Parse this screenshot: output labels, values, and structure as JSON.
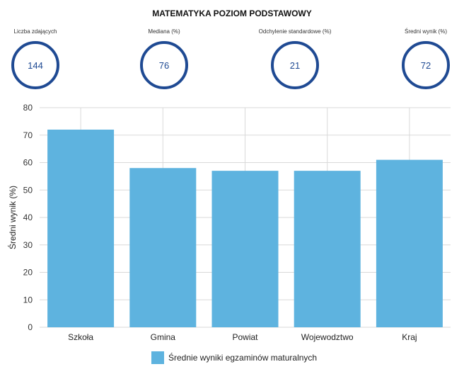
{
  "header": {
    "title": "MATEMATYKA POZIOM PODSTAWOWY"
  },
  "kpis": [
    {
      "label": "Liczba zdających",
      "value": "144"
    },
    {
      "label": "Mediana (%)",
      "value": "76"
    },
    {
      "label": "Odchylenie standardowe (%)",
      "value": "21"
    },
    {
      "label": "Średni wynik (%)",
      "value": "72"
    }
  ],
  "colors": {
    "bar": "#5eb3df",
    "kpi_ring": "#1f4a93",
    "grid": "#d9d9d9"
  },
  "chart_data": {
    "type": "bar",
    "title": "",
    "categories": [
      "Szkoła",
      "Gmina",
      "Powiat",
      "Wojewodztwo",
      "Kraj"
    ],
    "series": [
      {
        "name": "Średnie wyniki egzaminów maturalnych",
        "values": [
          72,
          58,
          57,
          57,
          61
        ]
      }
    ],
    "xlabel": "",
    "ylabel": "Średni wynik (%)",
    "ylim": [
      0,
      80
    ],
    "yticks": [
      0,
      10,
      20,
      30,
      40,
      50,
      60,
      70,
      80
    ],
    "grid": true,
    "legend": "bottom"
  }
}
